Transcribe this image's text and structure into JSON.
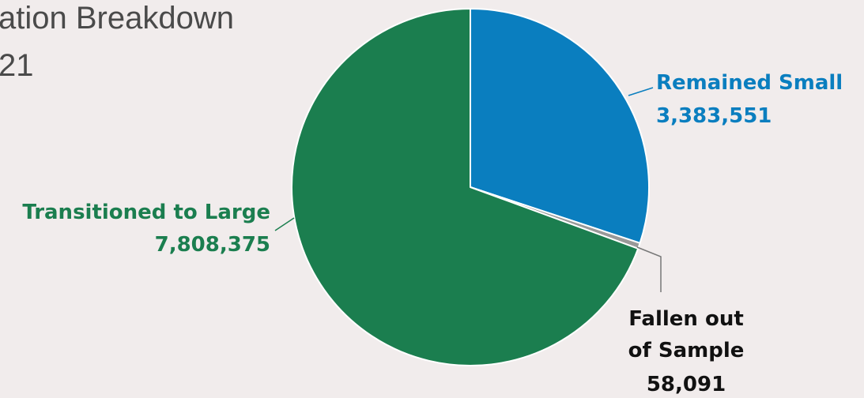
{
  "chart_data": {
    "type": "pie",
    "title_lines": [
      "ation Breakdown",
      "21"
    ],
    "slices": [
      {
        "label": "Remained Small",
        "value": 3383551,
        "value_text": "3,383,551",
        "color": "#0a7ebf"
      },
      {
        "label": "Fallen out of Sample",
        "label_lines": [
          "Fallen out",
          "of Sample"
        ],
        "value": 58091,
        "value_text": "58,091",
        "color": "#999999",
        "label_color": "#111111"
      },
      {
        "label": "Transitioned to Large",
        "value": 7808375,
        "value_text": "7,808,375",
        "color": "#1b7e4f"
      }
    ],
    "start_angle": "12 o'clock",
    "direction": "clockwise"
  }
}
